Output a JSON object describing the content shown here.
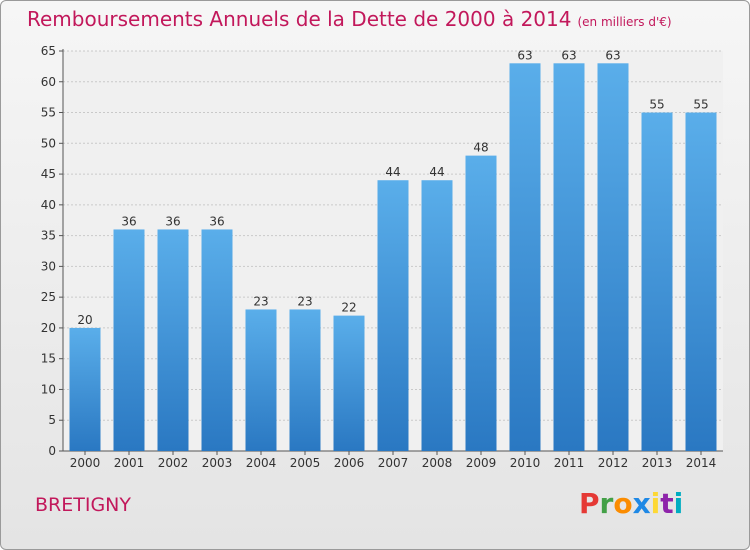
{
  "chart_data": {
    "type": "bar",
    "title": "Remboursements Annuels de la Dette de 2000 à 2014",
    "unit_note": "(en milliers d'€)",
    "categories": [
      "2000",
      "2001",
      "2002",
      "2003",
      "2004",
      "2005",
      "2006",
      "2007",
      "2008",
      "2009",
      "2010",
      "2011",
      "2012",
      "2013",
      "2014"
    ],
    "values": [
      20,
      36,
      36,
      36,
      23,
      23,
      22,
      44,
      44,
      48,
      63,
      63,
      63,
      55,
      55
    ],
    "xlabel": "",
    "ylabel": "",
    "ylim": [
      0,
      65
    ],
    "yticks": [
      0,
      5,
      10,
      15,
      20,
      25,
      30,
      35,
      40,
      45,
      50,
      55,
      60,
      65
    ],
    "grid": true,
    "bar_color": "#3b8fd9"
  },
  "footer": {
    "place": "BRETIGNY",
    "logo_letters": [
      "P",
      "r",
      "o",
      "x",
      "i",
      "t",
      "i"
    ],
    "logo_colors": [
      "#e53935",
      "#43a047",
      "#fb8c00",
      "#1e88e5",
      "#fdd835",
      "#8e24aa",
      "#00acc1"
    ]
  }
}
